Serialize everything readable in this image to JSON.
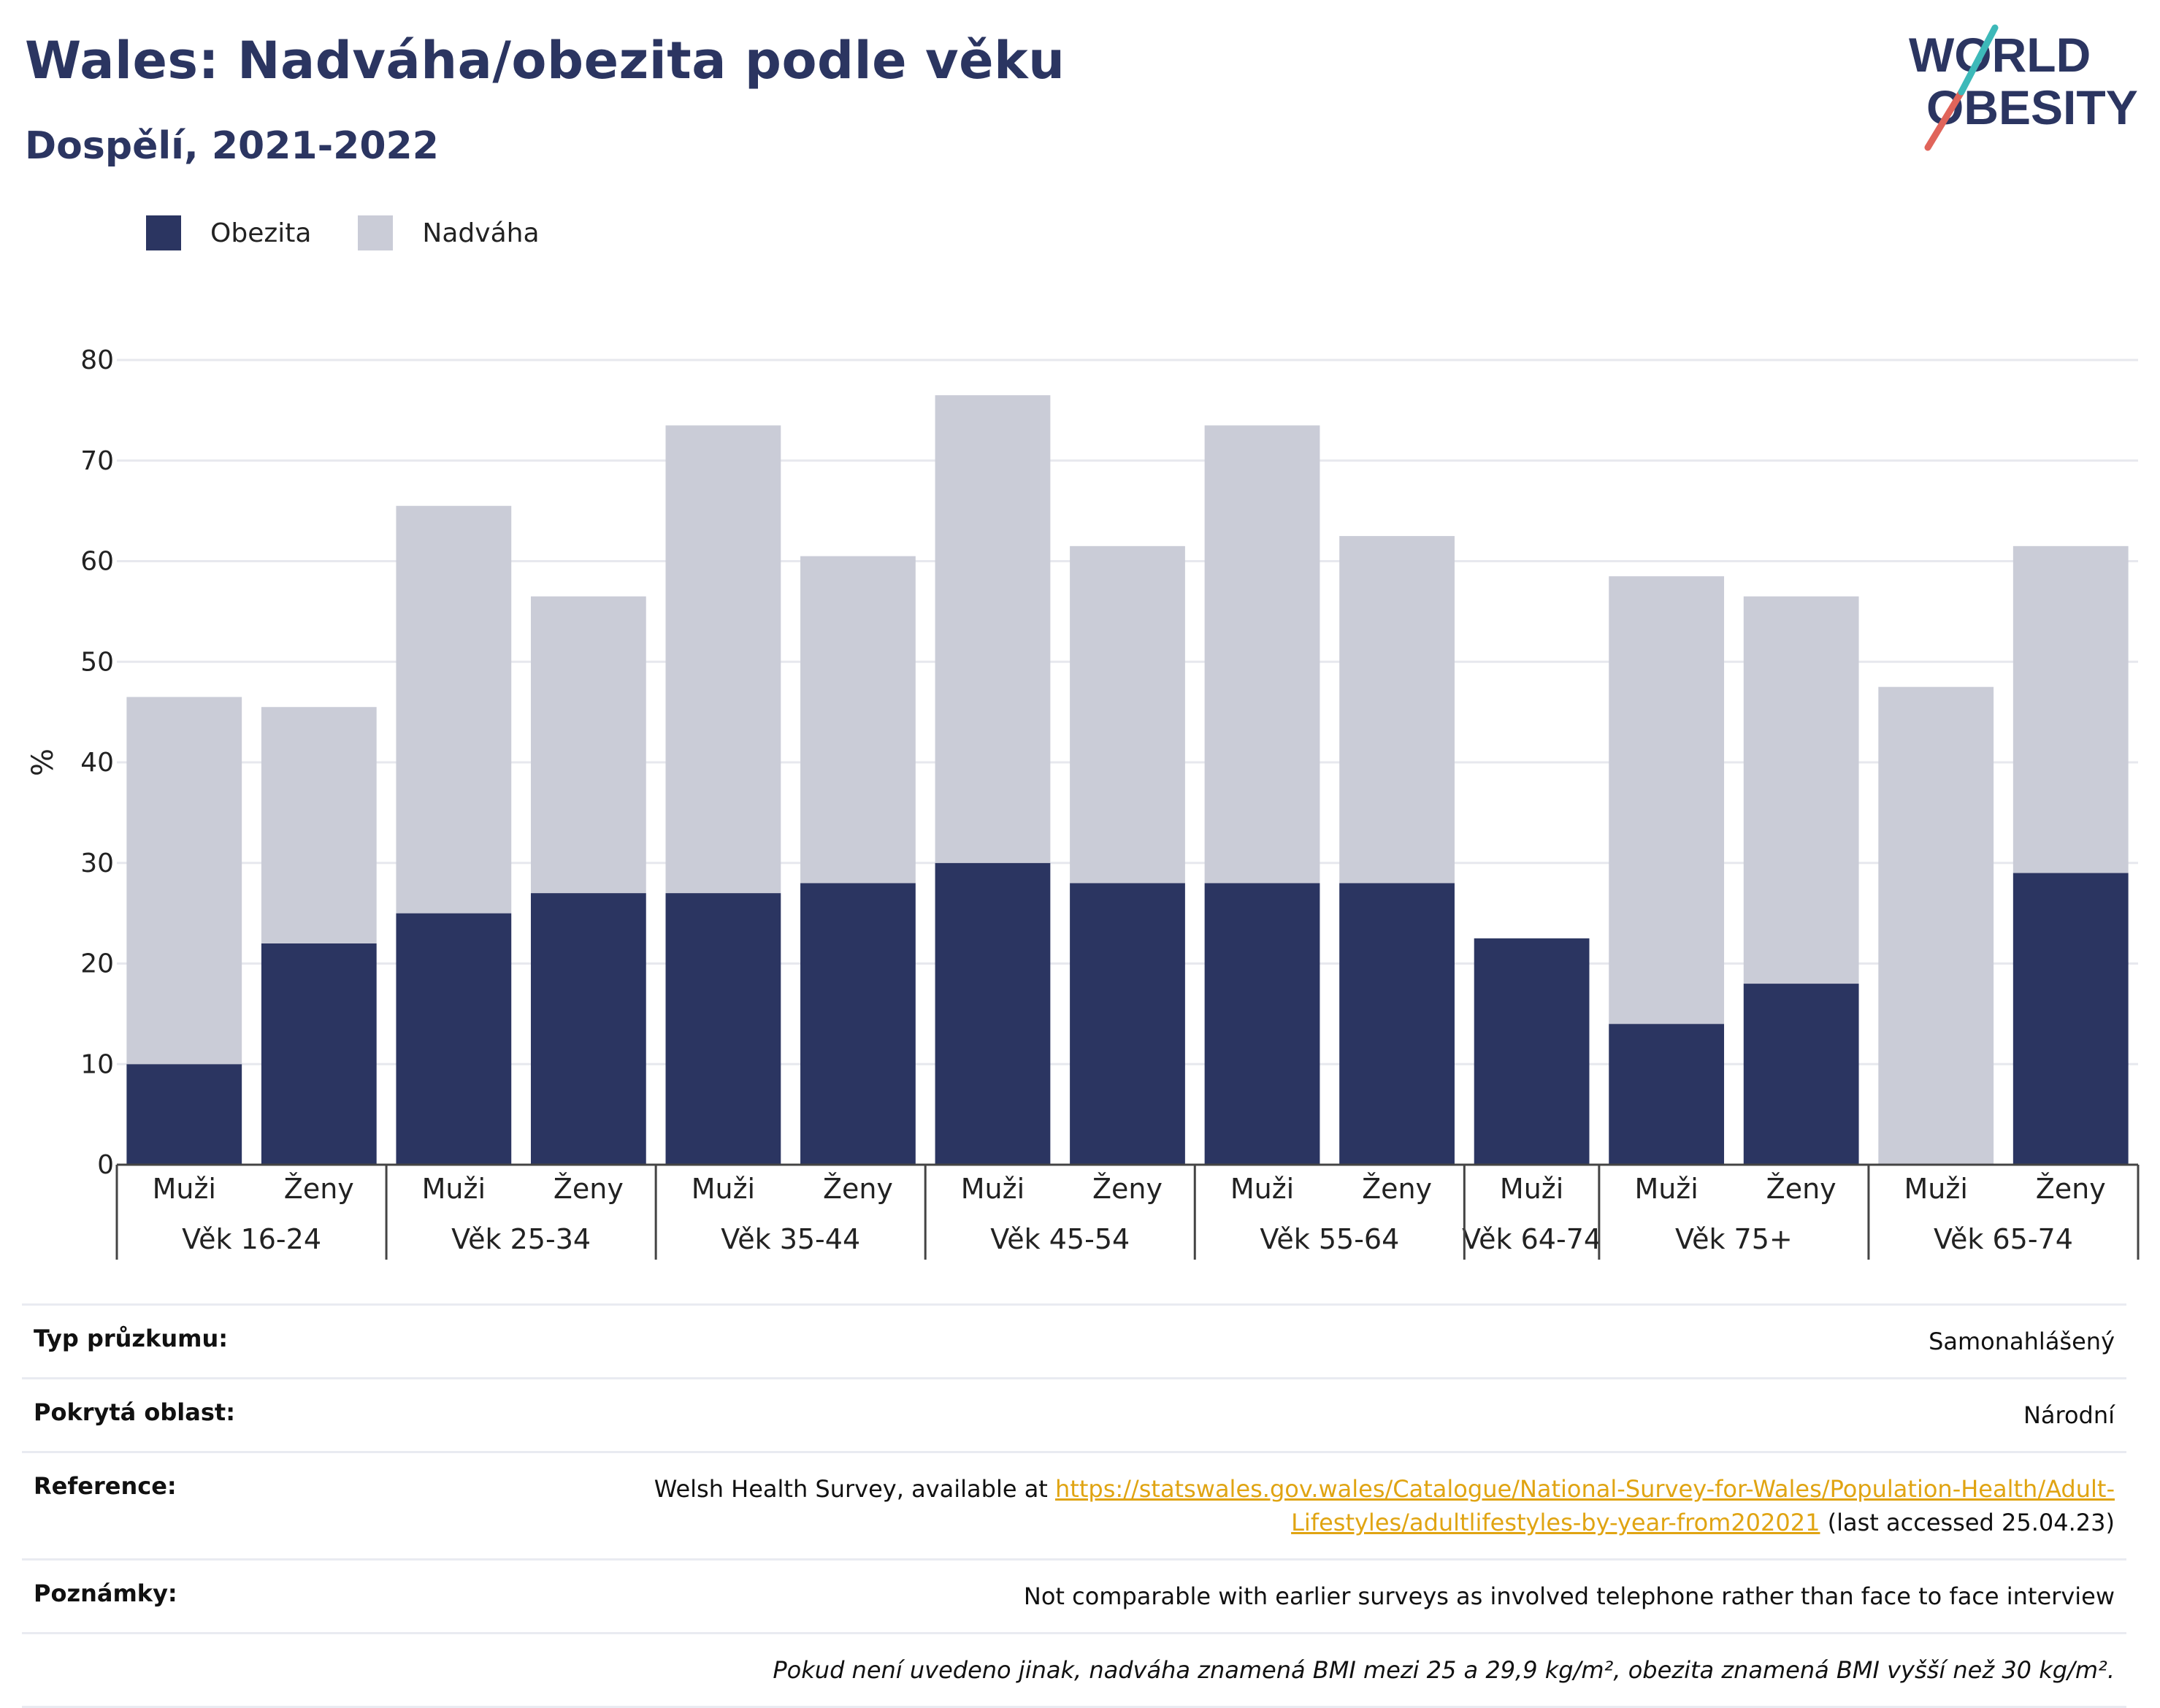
{
  "header": {
    "title": "Wales: Nadváha/obezita podle věku",
    "subtitle": "Dospělí, 2021-2022"
  },
  "logo": {
    "line1": "WORLD",
    "line2": "OBESITY"
  },
  "colors": {
    "obesity": "#2b3561",
    "overweight": "#caccd7",
    "accent_red": "#e0645a",
    "accent_teal": "#3db9b9",
    "link": "#e0a412"
  },
  "chart_data": {
    "type": "bar",
    "stacked": true,
    "ylabel": "%",
    "ylim": [
      0,
      80
    ],
    "yticks": [
      0,
      10,
      20,
      30,
      40,
      50,
      60,
      70,
      80
    ],
    "legend": [
      "Obezita",
      "Nadváha"
    ],
    "legend_position": "top-left",
    "grid": true,
    "groups": [
      {
        "label": "Věk 16-24",
        "bars": [
          {
            "sex": "Muži",
            "obesity": 10,
            "overweight": 36.5
          },
          {
            "sex": "Ženy",
            "obesity": 22,
            "overweight": 23.5
          }
        ]
      },
      {
        "label": "Věk 25-34",
        "bars": [
          {
            "sex": "Muži",
            "obesity": 25,
            "overweight": 40.5
          },
          {
            "sex": "Ženy",
            "obesity": 27,
            "overweight": 29.5
          }
        ]
      },
      {
        "label": "Věk 35-44",
        "bars": [
          {
            "sex": "Muži",
            "obesity": 27,
            "overweight": 46.5
          },
          {
            "sex": "Ženy",
            "obesity": 28,
            "overweight": 32.5
          }
        ]
      },
      {
        "label": "Věk 45-54",
        "bars": [
          {
            "sex": "Muži",
            "obesity": 30,
            "overweight": 46.5
          },
          {
            "sex": "Ženy",
            "obesity": 28,
            "overweight": 33.5
          }
        ]
      },
      {
        "label": "Věk 55-64",
        "bars": [
          {
            "sex": "Muži",
            "obesity": 28,
            "overweight": 45.5
          },
          {
            "sex": "Ženy",
            "obesity": 28,
            "overweight": 34.5
          }
        ]
      },
      {
        "label": "Věk 64-74",
        "bars": [
          {
            "sex": "Muži",
            "obesity": 22.5,
            "overweight": 0
          }
        ]
      },
      {
        "label": "Věk 75+",
        "bars": [
          {
            "sex": "Muži",
            "obesity": 14,
            "overweight": 44.5
          },
          {
            "sex": "Ženy",
            "obesity": 18,
            "overweight": 38.5
          }
        ]
      },
      {
        "label": "Věk 65-74",
        "bars": [
          {
            "sex": "Muži",
            "obesity": 0,
            "overweight": 47.5
          },
          {
            "sex": "Ženy",
            "obesity": 29,
            "overweight": 32.5
          }
        ]
      }
    ]
  },
  "info": {
    "survey_type_label": "Typ průzkumu:",
    "survey_type_value": "Samonahlášený",
    "coverage_label": "Pokrytá oblast:",
    "coverage_value": "Národní",
    "reference_label": "Reference:",
    "reference_prefix": "Welsh Health Survey, available at ",
    "reference_link": "https://statswales.gov.wales/Catalogue/National-Survey-for-Wales/Population-Health/Adult-Lifestyles/adultlifestyles-by-year-from202021",
    "reference_suffix": " (last accessed 25.04.23)",
    "notes_label": "Poznámky:",
    "notes_value": "Not comparable with earlier surveys as involved telephone rather than face to face interview",
    "footnote": "Pokud není uvedeno jinak, nadváha znamená BMI mezi 25 a 29,9 kg/m², obezita znamená BMI vyšší než 30 kg/m²."
  }
}
